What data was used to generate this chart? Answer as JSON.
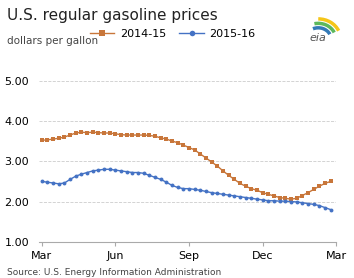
{
  "title": "U.S. regular gasoline prices",
  "ylabel": "dollars per gallon",
  "source": "Source: U.S. Energy Information Administration",
  "ylim": [
    1.0,
    5.0
  ],
  "yticks": [
    1.0,
    2.0,
    3.0,
    4.0,
    5.0
  ],
  "xtick_labels": [
    "Mar",
    "Jun",
    "Sep",
    "Dec",
    "Mar"
  ],
  "xtick_positions": [
    0,
    13,
    26,
    39,
    52
  ],
  "series_2014": {
    "label": "2014-15",
    "color": "#c8763a",
    "marker": "s",
    "values": [
      3.52,
      3.53,
      3.55,
      3.57,
      3.6,
      3.65,
      3.7,
      3.72,
      3.71,
      3.72,
      3.71,
      3.7,
      3.7,
      3.68,
      3.66,
      3.65,
      3.65,
      3.65,
      3.65,
      3.64,
      3.62,
      3.58,
      3.55,
      3.5,
      3.46,
      3.4,
      3.34,
      3.28,
      3.18,
      3.08,
      2.98,
      2.88,
      2.76,
      2.65,
      2.55,
      2.45,
      2.38,
      2.32,
      2.28,
      2.22,
      2.18,
      2.14,
      2.1,
      2.08,
      2.06,
      2.08,
      2.15,
      2.22,
      2.3,
      2.38,
      2.45,
      2.5
    ]
  },
  "series_2015": {
    "label": "2015-16",
    "color": "#4472c4",
    "marker": "o",
    "values": [
      2.5,
      2.48,
      2.46,
      2.44,
      2.46,
      2.55,
      2.63,
      2.68,
      2.72,
      2.76,
      2.78,
      2.8,
      2.8,
      2.78,
      2.76,
      2.74,
      2.72,
      2.72,
      2.7,
      2.65,
      2.6,
      2.55,
      2.48,
      2.4,
      2.35,
      2.32,
      2.32,
      2.3,
      2.28,
      2.25,
      2.22,
      2.2,
      2.18,
      2.16,
      2.14,
      2.12,
      2.1,
      2.08,
      2.06,
      2.04,
      2.02,
      2.02,
      2.01,
      2.01,
      2.0,
      1.99,
      1.97,
      1.95,
      1.93,
      1.9,
      1.85,
      1.8
    ]
  },
  "background_color": "#ffffff",
  "grid_color": "#cccccc",
  "title_fontsize": 11,
  "label_fontsize": 7.5,
  "tick_fontsize": 8,
  "legend_fontsize": 8,
  "source_fontsize": 6.5
}
